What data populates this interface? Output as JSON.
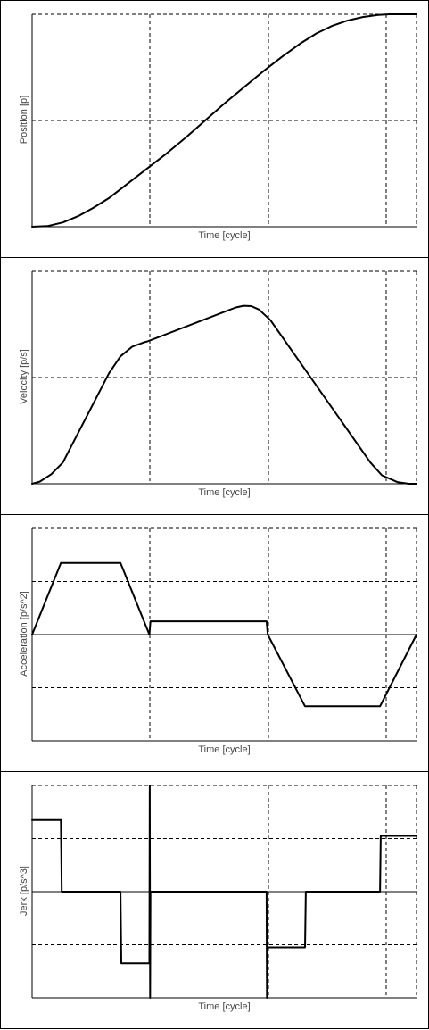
{
  "chart_data": [
    {
      "type": "line",
      "title": "",
      "xlabel": "Time [cycle]",
      "ylabel": "Position [p]",
      "xlim": [
        0,
        1
      ],
      "ylim": [
        0,
        1
      ],
      "grid": true,
      "series": [
        {
          "x": [
            0,
            0.04,
            0.08,
            0.12,
            0.16,
            0.2,
            0.25,
            0.3,
            0.35,
            0.4,
            0.45,
            0.5,
            0.55,
            0.6,
            0.65,
            0.7,
            0.74,
            0.78,
            0.82,
            0.86,
            0.9,
            0.93,
            0.96,
            1.0
          ],
          "values": [
            0,
            0.003,
            0.02,
            0.05,
            0.09,
            0.135,
            0.205,
            0.275,
            0.345,
            0.42,
            0.5,
            0.58,
            0.655,
            0.73,
            0.8,
            0.865,
            0.91,
            0.945,
            0.97,
            0.987,
            0.997,
            1.0,
            1.0,
            1.0
          ]
        }
      ]
    },
    {
      "type": "line",
      "title": "",
      "xlabel": "Time [cycle]",
      "ylabel": "Velocity [p/s]",
      "xlim": [
        0,
        1
      ],
      "ylim": [
        0,
        1
      ],
      "grid": true,
      "series": [
        {
          "x": [
            0,
            0.02,
            0.05,
            0.08,
            0.2,
            0.23,
            0.26,
            0.29,
            0.3,
            0.53,
            0.55,
            0.57,
            0.59,
            0.62,
            0.88,
            0.91,
            0.95,
            0.98,
            1.0
          ],
          "values": [
            0,
            0.01,
            0.045,
            0.1,
            0.52,
            0.6,
            0.645,
            0.665,
            0.67,
            0.83,
            0.838,
            0.836,
            0.82,
            0.77,
            0.1,
            0.04,
            0.008,
            0.0,
            0
          ]
        }
      ]
    },
    {
      "type": "line",
      "title": "",
      "xlabel": "Time [cycle]",
      "ylabel": "Acceleration [p/s^2]",
      "xlim": [
        0,
        1
      ],
      "ylim": [
        -2,
        2
      ],
      "grid": true,
      "series": [
        {
          "x": [
            0,
            0.075,
            0.23,
            0.305,
            0.308,
            0.61,
            0.613,
            0.71,
            0.905,
            1.0
          ],
          "values": [
            0,
            1.35,
            1.35,
            0,
            0.25,
            0.25,
            0,
            -1.35,
            -1.35,
            0
          ]
        }
      ]
    },
    {
      "type": "line",
      "title": "",
      "xlabel": "Time [cycle]",
      "ylabel": "Jerk [p/s^3]",
      "xlim": [
        0,
        1
      ],
      "ylim": [
        -2,
        2
      ],
      "grid": true,
      "series": [
        {
          "x": [
            0,
            0.075,
            0.077,
            0.23,
            0.232,
            0.305,
            0.306,
            0.307,
            0.308,
            0.61,
            0.611,
            0.612,
            0.71,
            0.712,
            0.905,
            0.907,
            1.0
          ],
          "values": [
            1.35,
            1.35,
            0,
            0,
            -1.35,
            -1.35,
            2,
            -2,
            0,
            0,
            -2,
            -1.05,
            -1.05,
            0,
            0,
            1.05,
            1.05
          ]
        }
      ]
    }
  ]
}
